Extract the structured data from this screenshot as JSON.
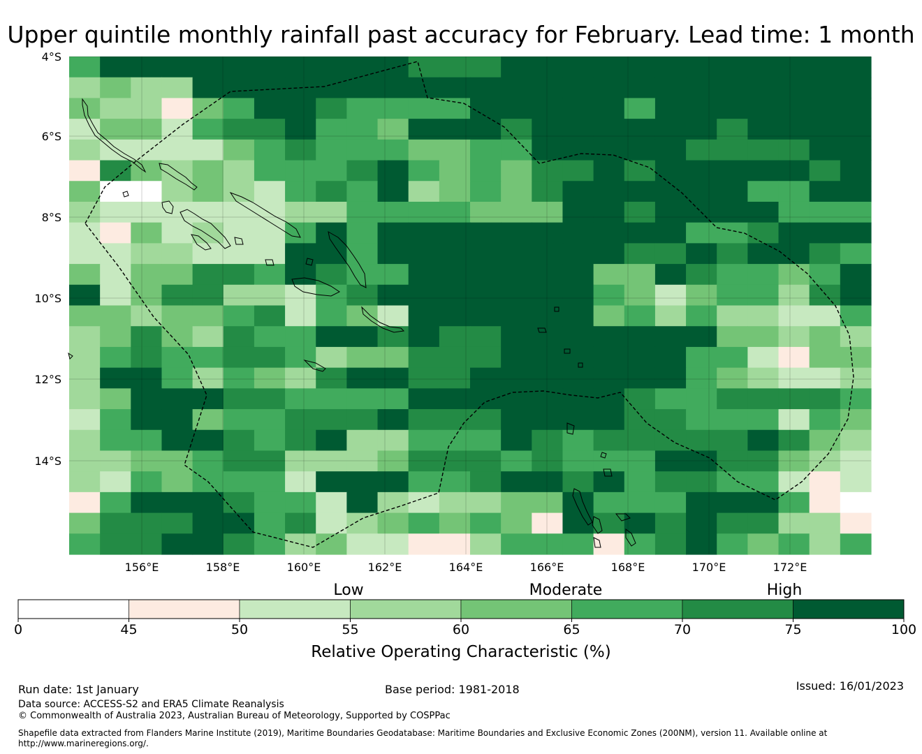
{
  "title": "Upper quintile monthly rainfall past accuracy for February. Lead time: 1 month",
  "map": {
    "lat_labels": [
      "4°S",
      "6°S",
      "8°S",
      "10°S",
      "12°S",
      "14°S"
    ],
    "lon_labels": [
      "156°E",
      "158°E",
      "160°E",
      "162°E",
      "164°E",
      "166°E",
      "168°E",
      "170°E",
      "172°E"
    ],
    "palette": {
      "0": "#ffffff",
      "1": "#fdebe1",
      "2": "#c7e9c0",
      "3": "#a1d99b",
      "4": "#74c476",
      "5": "#41ab5d",
      "6": "#238b45",
      "7": "#005a32"
    },
    "grid_rows": [
      "57777777777666777777777777",
      "34337777777777777777777777",
      "43314577655557777757777777",
      "24425667554777677777767777",
      "32222456555445577777666677",
      "16434355567545466767777767",
      "40034325657345467777775577",
      "32222223355554447767777555",
      "21423225757777777777556777",
      "22332227757777777766767765",
      "42446657655777777447655457",
      "72466332567777777542455367",
      "44344562542777777453533225",
      "34643655776766777777744343",
      "35655665344666777777552144",
      "37753543677667777777543223",
      "34777665555777777765566665",
      "25774556667666777766555254",
      "35577656733555765666667643",
      "33445663334666565557766432",
      "32545552777556776756655212",
      "15777655273233447555777510",
      "46667756234545417676766331",
      "56677653422113555156754535"
    ],
    "colorbar": {
      "categories": [
        "Low",
        "Moderate",
        "High"
      ],
      "ticks": [
        "0",
        "45",
        "50",
        "55",
        "60",
        "65",
        "70",
        "75",
        "100"
      ],
      "colors": [
        "#ffffff",
        "#fdebe1",
        "#c7e9c0",
        "#a1d99b",
        "#74c476",
        "#41ab5d",
        "#238b45",
        "#005a32"
      ],
      "title": "Relative Operating Characteristic (%)"
    }
  },
  "footer": {
    "run_date": "Run date: 1st January",
    "base_period": "Base period: 1981-2018",
    "issued": "Issued: 16/01/2023",
    "data_source": "Data source: ACCESS-S2 and ERA5 Climate Reanalysis",
    "copyright": "© Commonwealth of Australia 2023, Australian Bureau of Meteorology, Supported by COSPPac",
    "shapefile_line1": "Shapefile data extracted from Flanders Marine Institute (2019), Maritime Boundaries Geodatabase: Maritime Boundaries and Exclusive Economic Zones (200NM), version 11. Available online at",
    "shapefile_line2": "http://www.marineregions.org/."
  }
}
